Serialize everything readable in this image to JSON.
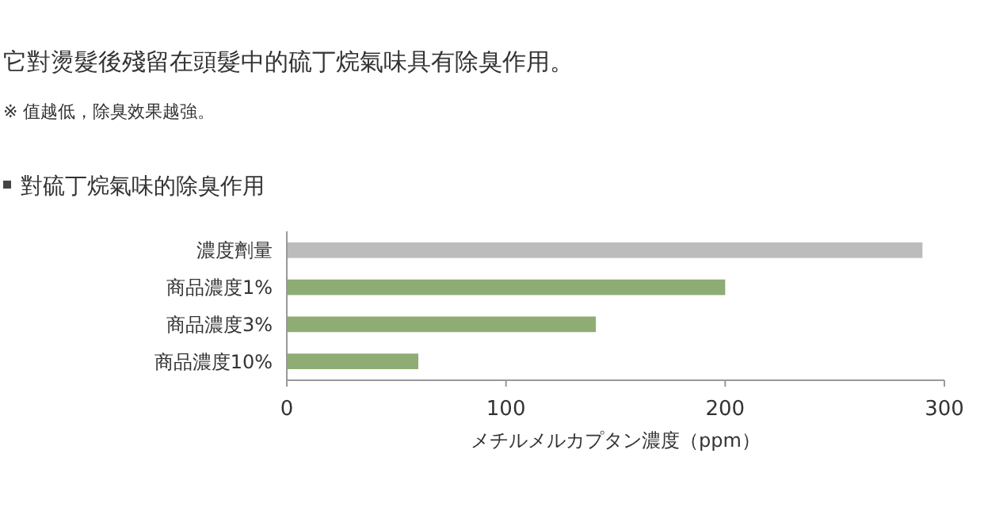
{
  "chart_data": {
    "type": "bar",
    "orientation": "horizontal",
    "title": "它對燙髮後殘留在頭髮中的硫丁烷氣味具有除臭作用。",
    "subtitle": "※ 值越低，除臭效果越強。",
    "annotations": [
      "對硫丁烷氣味的除臭作用"
    ],
    "categories": [
      "濃度劑量",
      "商品濃度1%",
      "商品濃度3%",
      "商品濃度10%"
    ],
    "values": [
      290,
      200,
      141,
      60
    ],
    "colors": [
      "#bcbcbc",
      "#8fac74",
      "#8fac74",
      "#8fac74"
    ],
    "xlim": [
      0,
      300
    ],
    "xticks": [
      0,
      100,
      200,
      300
    ],
    "xlabel": "メチルメルカプタン濃度（ppm）",
    "grid": false
  }
}
